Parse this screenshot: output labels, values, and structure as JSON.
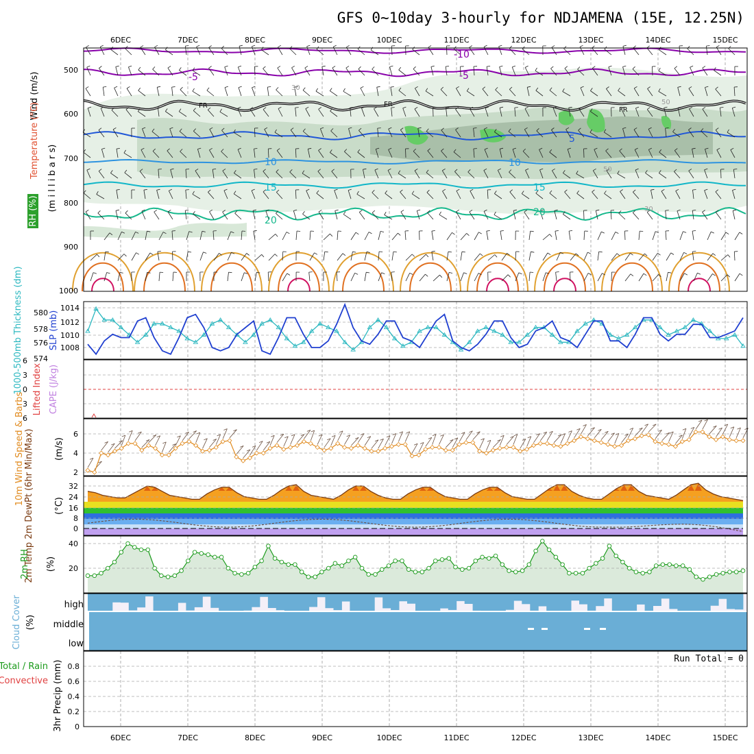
{
  "chart_data": {
    "type": "meteogram",
    "title": "GFS 0~10day 3-hourly for NDJAMENA (15E, 12.25N)",
    "date_labels": [
      "6DEC",
      "7DEC",
      "8DEC",
      "9DEC",
      "10DEC",
      "11DEC",
      "12DEC",
      "13DEC",
      "14DEC",
      "15DEC"
    ],
    "panels": {
      "upper": {
        "ylabels": [
          "Wind (m/s)",
          "Temperature (°C)",
          "(m i l l i b a r s)",
          "RH (%)"
        ],
        "pressure_ticks": [
          "500",
          "600",
          "700",
          "800",
          "900",
          "1000"
        ],
        "isotherm_labels": [
          "-10",
          "-5",
          "-5",
          "FR",
          "FR",
          "FR",
          "5",
          "10",
          "10",
          "15",
          "15",
          "20",
          "20",
          "30",
          "30",
          "50",
          "50"
        ]
      },
      "slp": {
        "ylabel_left": "1000-500mb Thickness (dm)",
        "ylabel_right": "SLP (mb)",
        "thickness_ticks": [
          "580",
          "578",
          "576",
          "574"
        ],
        "slp_ticks": [
          "1014",
          "1012",
          "1010",
          "1008"
        ],
        "slp_values": [
          1008.5,
          1007,
          1009,
          1010,
          1009.5,
          1009.5,
          1012,
          1012.5,
          1009.5,
          1007.5,
          1007,
          1009.5,
          1012.5,
          1013,
          1011,
          1008,
          1007.5,
          1008,
          1010,
          1011,
          1012,
          1007.5,
          1007,
          1009.5,
          1012.5,
          1012.5,
          1010,
          1008,
          1008,
          1009,
          1011.5,
          1014.5,
          1011,
          1009,
          1008.5,
          1010,
          1012,
          1012,
          1009.5,
          1009,
          1008,
          1010,
          1012,
          1013,
          1009,
          1008,
          1007.5,
          1008.5,
          1010,
          1012,
          1012,
          1009.5,
          1008,
          1008.5,
          1010.5,
          1011,
          1012,
          1009.5,
          1009,
          1008,
          1010,
          1012,
          1012,
          1009,
          1009,
          1008,
          1010,
          1012.5,
          1012.5,
          1010,
          1009,
          1010,
          1010,
          1011.5,
          1011.5,
          1009.5,
          1009.5,
          1010,
          1010.5,
          1012.5
        ],
        "thickness_values": [
          577.5,
          580.5,
          579,
          579,
          578,
          577,
          576,
          577,
          578.5,
          578.5,
          578,
          577.5,
          576.5,
          576,
          577,
          578.5,
          579,
          578,
          577,
          576,
          577,
          578.5,
          579,
          578,
          576.5,
          575.5,
          576,
          577.5,
          578.5,
          578,
          577.5,
          576,
          575,
          576,
          578,
          579,
          578,
          576.5,
          575.5,
          576,
          577.5,
          578,
          578,
          577,
          576,
          575,
          576,
          577.5,
          578,
          577.5,
          577,
          576,
          576,
          577,
          578,
          578,
          577,
          576,
          576,
          577.5,
          578.5,
          579,
          578.5,
          577,
          576.5,
          577,
          578,
          579,
          579,
          578,
          577,
          577.5,
          578,
          579,
          578.5,
          577.5,
          576.5,
          576.5,
          577,
          575.5
        ]
      },
      "stability": {
        "ylabel_left": "Lifted Index",
        "ylabel_right": "CAPE (J/kg)",
        "li_ticks": [
          "6",
          "3",
          "0",
          "3",
          "6"
        ]
      },
      "wind10m": {
        "ylabel_left": "10m Wind Speed & Barbs",
        "ylabel_right": "(m/s)",
        "ticks": [
          "6",
          "4",
          "2"
        ],
        "values": [
          2.2,
          2,
          4,
          3.8,
          4.2,
          4.5,
          5,
          5,
          4.3,
          4.8,
          4.5,
          3.8,
          3.8,
          4.5,
          5,
          5.2,
          4.8,
          4.2,
          4.3,
          4.6,
          5.2,
          5.3,
          3.6,
          3.2,
          3.5,
          4,
          4,
          4.5,
          4.8,
          4.4,
          4.6,
          4.8,
          5.2,
          5,
          4.6,
          4.3,
          4.5,
          5,
          4.6,
          4.5,
          4.8,
          4.5,
          4.2,
          4.2,
          4.5,
          4.7,
          4.9,
          4.9,
          3.7,
          3.8,
          4.4,
          4.6,
          4.6,
          4.3,
          4.3,
          4.9,
          5.1,
          5.1,
          4.2,
          4,
          4.3,
          4.5,
          4.6,
          4.6,
          4.2,
          4.4,
          4.8,
          5,
          5,
          4.8,
          4.7,
          5,
          5.3,
          5.7,
          5.5,
          5.3,
          5.1,
          4.9,
          4.7,
          4.8,
          5.3,
          5.5,
          5.8,
          5.9,
          5.2,
          5,
          4.9,
          4.7,
          5.2,
          5.4,
          6.2,
          6.2,
          5.7,
          5.4,
          5.7,
          5.4,
          5.3,
          5.3
        ]
      },
      "temp2m": {
        "ylabel_left": "2m Temp 2m DewPt (6hr Min/Max)",
        "ylabel_right": "(°C)",
        "ticks": [
          "32",
          "24",
          "16",
          "8",
          "0"
        ],
        "temp_values": [
          28,
          27,
          25,
          24,
          23,
          23,
          26,
          29,
          32,
          31,
          28,
          25,
          24,
          23,
          22,
          22,
          26,
          29,
          31,
          31,
          27,
          24,
          23,
          22,
          22,
          25,
          29,
          32,
          33,
          28,
          25,
          24,
          23,
          22,
          25,
          29,
          32,
          32,
          28,
          25,
          23,
          22,
          22,
          26,
          29,
          31,
          31,
          27,
          24,
          23,
          22,
          22,
          26,
          29,
          31,
          31,
          27,
          24,
          23,
          22,
          22,
          26,
          30,
          33,
          33,
          28,
          25,
          23,
          22,
          22,
          26,
          30,
          33,
          33,
          28,
          25,
          24,
          23,
          22,
          25,
          29,
          33,
          34,
          29,
          26,
          24,
          23,
          22,
          21
        ]
      },
      "rh2m": {
        "ylabel_left": "2m RH",
        "ylabel_right": "(%)",
        "ticks": [
          "40",
          "20"
        ],
        "values": [
          14,
          14,
          16,
          20,
          25,
          33,
          40,
          37,
          35,
          35,
          20,
          14,
          13,
          14,
          18,
          26,
          33,
          32,
          31,
          29,
          29,
          20,
          16,
          15,
          16,
          21,
          26,
          38,
          28,
          25,
          23,
          23,
          17,
          13,
          13,
          17,
          20,
          24,
          22,
          26,
          29,
          20,
          15,
          15,
          19,
          22,
          26,
          26,
          19,
          17,
          17,
          20,
          26,
          27,
          28,
          21,
          19,
          20,
          26,
          29,
          28,
          30,
          23,
          18,
          17,
          18,
          23,
          34,
          42,
          35,
          29,
          23,
          16,
          16,
          16,
          20,
          24,
          28,
          38,
          30,
          25,
          20,
          17,
          16,
          17,
          22,
          23,
          23,
          22,
          22,
          19,
          13,
          11,
          13,
          15,
          16,
          17,
          17,
          18
        ]
      },
      "cloud": {
        "ylabel_left": "Cloud Cover",
        "ylabel_right": "(%)",
        "levels": [
          "high",
          "middle",
          "low"
        ]
      },
      "precip": {
        "ylabel_left": "3hr Precip (mm)",
        "legend_a": "Total / Rain",
        "legend_b": "Convective",
        "ticks": [
          "0.8",
          "0.6",
          "0.4",
          "0.2",
          "0"
        ],
        "run_total": "Run Total = 0"
      }
    }
  },
  "colors": {
    "purple": "#8800aa",
    "black": "#111111",
    "blue": "#1f56d8",
    "lightblue": "#2d93e0",
    "cyan": "#11b6c8",
    "green": "#16b88c",
    "slp_line": "#1f3fd0",
    "thickness_line": "#2cb8c0",
    "wind_line": "#e08a1e",
    "rh_line": "#1a9a1a",
    "rh_fill": "#b9d6b9",
    "cloud": "#6aaed6",
    "frame": "#000000"
  }
}
